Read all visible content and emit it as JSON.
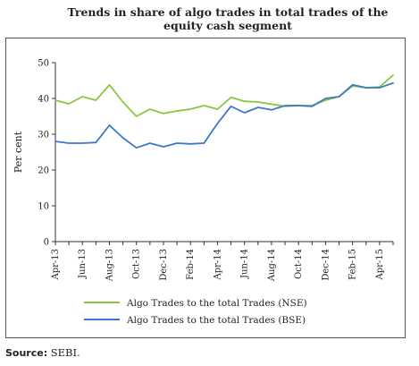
{
  "chart_data": {
    "type": "line",
    "title": "Trends in share of algo trades in total trades of the equity cash segment",
    "ylabel": "Per cent",
    "ylim": [
      0,
      50
    ],
    "yticks": [
      0,
      10,
      20,
      30,
      40,
      50
    ],
    "x_ticks": [
      "Apr-13",
      "Jun-13",
      "Aug-13",
      "Oct-13",
      "Dec-13",
      "Feb-14",
      "Apr-14",
      "Jun-14",
      "Aug-14",
      "Oct-14",
      "Dec-14",
      "Feb-15",
      "Apr-15"
    ],
    "x_range": [
      0,
      25
    ],
    "grid": false,
    "legend_position": "bottom",
    "series": [
      {
        "name": "Algo Trades to the total Trades (NSE)",
        "color": "#8cc63f",
        "points": [
          [
            0,
            39.5
          ],
          [
            1,
            38.5
          ],
          [
            2,
            40.5
          ],
          [
            3,
            39.5
          ],
          [
            4,
            43.8
          ],
          [
            5,
            39
          ],
          [
            6,
            35
          ],
          [
            7,
            37
          ],
          [
            8,
            35.8
          ],
          [
            9,
            36.5
          ],
          [
            10,
            37
          ],
          [
            11,
            38
          ],
          [
            12,
            37
          ],
          [
            13,
            40.3
          ],
          [
            14,
            39.2
          ],
          [
            15,
            39
          ],
          [
            16,
            38.4
          ],
          [
            17,
            37.8
          ],
          [
            18,
            38
          ],
          [
            19,
            38
          ],
          [
            20,
            39.5
          ],
          [
            21,
            40.5
          ],
          [
            22,
            43.5
          ],
          [
            23,
            43
          ],
          [
            24,
            43.2
          ],
          [
            25,
            46.5
          ]
        ]
      },
      {
        "name": "Algo Trades to the total Trades (BSE)",
        "color": "#3a78c9",
        "points": [
          [
            0,
            28
          ],
          [
            1,
            27.5
          ],
          [
            2,
            27.5
          ],
          [
            3,
            27.7
          ],
          [
            4,
            32.5
          ],
          [
            5,
            29
          ],
          [
            6,
            26.2
          ],
          [
            7,
            27.5
          ],
          [
            8,
            26.5
          ],
          [
            9,
            27.5
          ],
          [
            10,
            27.3
          ],
          [
            11,
            27.5
          ],
          [
            12,
            33
          ],
          [
            13,
            37.8
          ],
          [
            14,
            36
          ],
          [
            15,
            37.5
          ],
          [
            16,
            36.8
          ],
          [
            17,
            38
          ],
          [
            18,
            38
          ],
          [
            19,
            37.8
          ],
          [
            20,
            40
          ],
          [
            21,
            40.5
          ],
          [
            22,
            43.8
          ],
          [
            23,
            43
          ],
          [
            24,
            43
          ],
          [
            25,
            44.3
          ]
        ]
      }
    ]
  },
  "source": {
    "label": "Source:",
    "text": "SEBI."
  }
}
